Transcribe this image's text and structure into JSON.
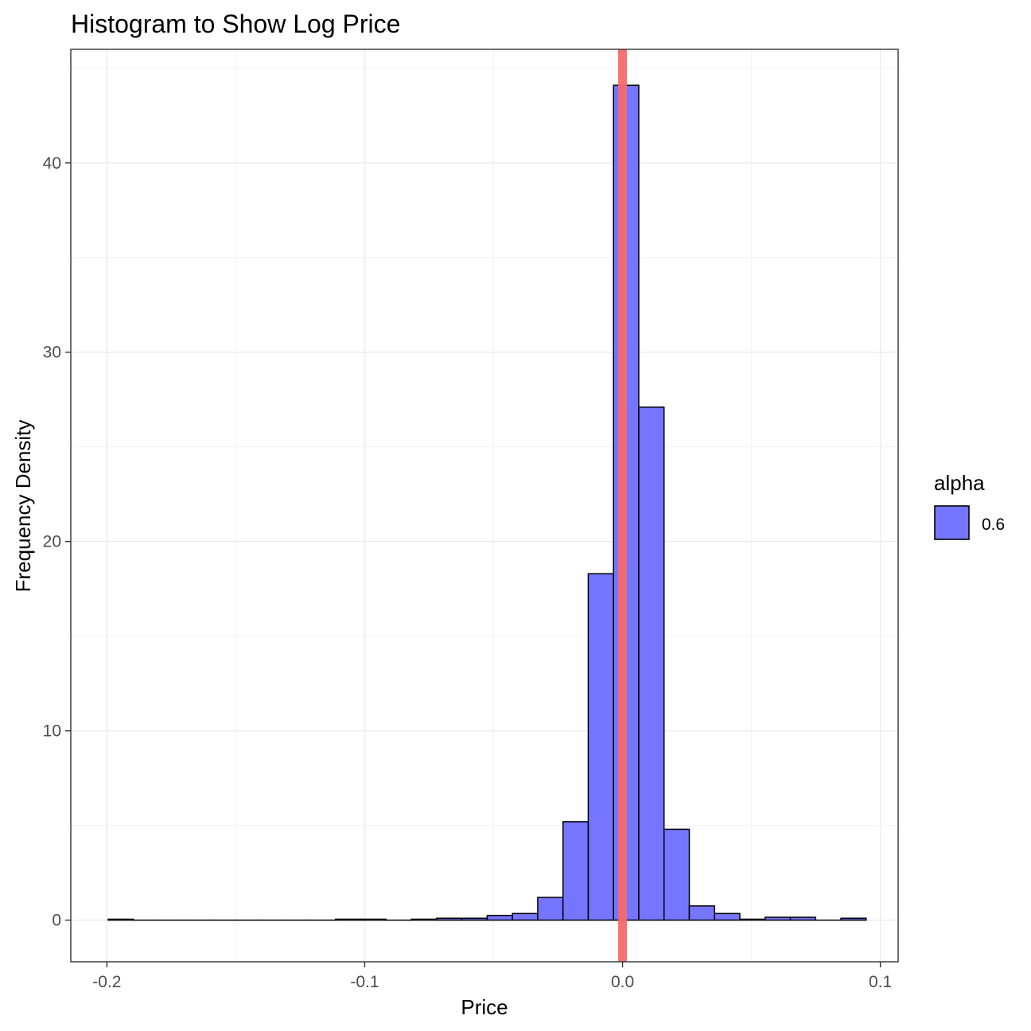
{
  "chart_data": {
    "type": "bar",
    "title": "Histogram to Show Log Price",
    "xlabel": "Price",
    "ylabel": "Frequency Density",
    "xlim": [
      -0.214,
      0.1069
    ],
    "ylim": [
      -2.2,
      46.0
    ],
    "xticks": [
      -0.2,
      -0.1,
      0.0,
      0.1
    ],
    "xtick_labels": [
      "-0.2",
      "-0.1",
      "0.0",
      "0.1"
    ],
    "yticks": [
      0,
      10,
      20,
      30,
      40
    ],
    "ytick_labels": [
      "0",
      "10",
      "20",
      "30",
      "40"
    ],
    "grid": true,
    "bins": [
      {
        "x0": -0.1995,
        "x1": -0.1897,
        "y": 0.05
      },
      {
        "x0": -0.1897,
        "x1": -0.1799,
        "y": 0.0
      },
      {
        "x0": -0.1799,
        "x1": -0.1701,
        "y": 0.0
      },
      {
        "x0": -0.1701,
        "x1": -0.1603,
        "y": 0.0
      },
      {
        "x0": -0.1603,
        "x1": -0.1505,
        "y": 0.0
      },
      {
        "x0": -0.1505,
        "x1": -0.1407,
        "y": 0.0
      },
      {
        "x0": -0.1407,
        "x1": -0.1309,
        "y": 0.0
      },
      {
        "x0": -0.1309,
        "x1": -0.1211,
        "y": 0.0
      },
      {
        "x0": -0.1211,
        "x1": -0.1113,
        "y": 0.0
      },
      {
        "x0": -0.1113,
        "x1": -0.1015,
        "y": 0.05
      },
      {
        "x0": -0.1015,
        "x1": -0.0917,
        "y": 0.05
      },
      {
        "x0": -0.0917,
        "x1": -0.0819,
        "y": 0.0
      },
      {
        "x0": -0.0819,
        "x1": -0.0721,
        "y": 0.05
      },
      {
        "x0": -0.0721,
        "x1": -0.0623,
        "y": 0.1
      },
      {
        "x0": -0.0623,
        "x1": -0.0525,
        "y": 0.1
      },
      {
        "x0": -0.0525,
        "x1": -0.0427,
        "y": 0.25
      },
      {
        "x0": -0.0427,
        "x1": -0.0329,
        "y": 0.35
      },
      {
        "x0": -0.0329,
        "x1": -0.0231,
        "y": 1.2
      },
      {
        "x0": -0.0231,
        "x1": -0.0133,
        "y": 5.2
      },
      {
        "x0": -0.0133,
        "x1": -0.0035,
        "y": 18.3
      },
      {
        "x0": -0.0035,
        "x1": 0.0063,
        "y": 44.1
      },
      {
        "x0": 0.0063,
        "x1": 0.0161,
        "y": 27.1
      },
      {
        "x0": 0.0161,
        "x1": 0.0259,
        "y": 4.8
      },
      {
        "x0": 0.0259,
        "x1": 0.0357,
        "y": 0.75
      },
      {
        "x0": 0.0357,
        "x1": 0.0455,
        "y": 0.35
      },
      {
        "x0": 0.0455,
        "x1": 0.0553,
        "y": 0.05
      },
      {
        "x0": 0.0553,
        "x1": 0.0651,
        "y": 0.15
      },
      {
        "x0": 0.0651,
        "x1": 0.0749,
        "y": 0.15
      },
      {
        "x0": 0.0749,
        "x1": 0.0847,
        "y": 0.0
      },
      {
        "x0": 0.0847,
        "x1": 0.0945,
        "y": 0.1
      }
    ],
    "vline": {
      "x": 0.0,
      "color": "#f8696b"
    },
    "bar_fill": "#7575ff",
    "bar_stroke": "#000000",
    "legend": {
      "title": "alpha",
      "label": "0.6",
      "position": "right"
    }
  }
}
